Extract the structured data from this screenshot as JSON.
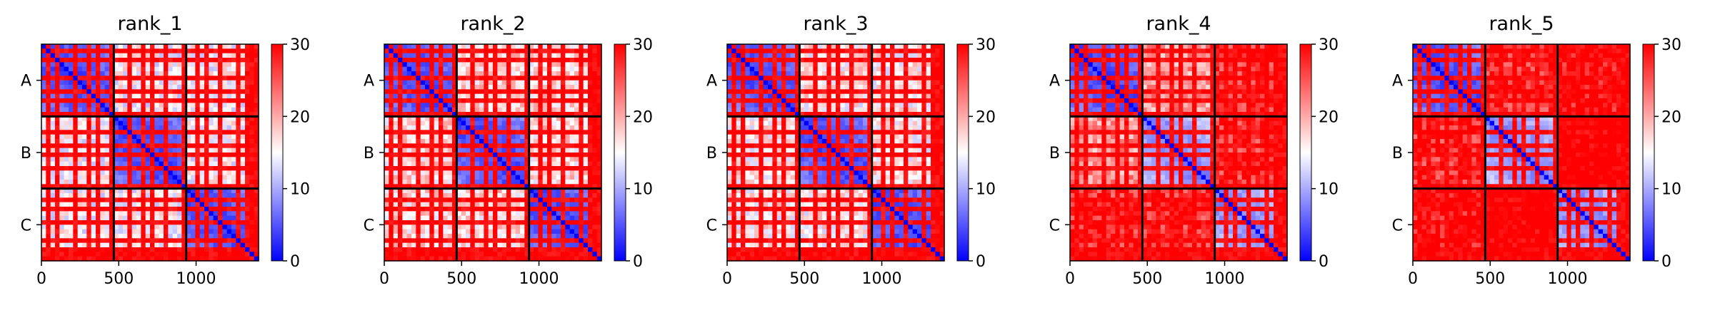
{
  "chart_data": [
    {
      "type": "heatmap",
      "title": "rank_1",
      "x_ticks": [
        0,
        500,
        1000
      ],
      "y_ticks": [
        "A",
        "B",
        "C"
      ],
      "xlim": [
        0,
        1404
      ],
      "chain_boundaries": [
        468,
        936
      ],
      "color_scale": {
        "min": 0,
        "max": 30,
        "ticks": [
          0,
          10,
          20,
          30
        ],
        "colors": [
          "#0000ff",
          "#ffffff",
          "#ff0000"
        ]
      },
      "variant": 0
    },
    {
      "type": "heatmap",
      "title": "rank_2",
      "x_ticks": [
        0,
        500,
        1000
      ],
      "y_ticks": [
        "A",
        "B",
        "C"
      ],
      "xlim": [
        0,
        1404
      ],
      "chain_boundaries": [
        468,
        936
      ],
      "color_scale": {
        "min": 0,
        "max": 30,
        "ticks": [
          0,
          10,
          20,
          30
        ],
        "colors": [
          "#0000ff",
          "#ffffff",
          "#ff0000"
        ]
      },
      "variant": 1
    },
    {
      "type": "heatmap",
      "title": "rank_3",
      "x_ticks": [
        0,
        500,
        1000
      ],
      "y_ticks": [
        "A",
        "B",
        "C"
      ],
      "xlim": [
        0,
        1404
      ],
      "chain_boundaries": [
        468,
        936
      ],
      "color_scale": {
        "min": 0,
        "max": 30,
        "ticks": [
          0,
          10,
          20,
          30
        ],
        "colors": [
          "#0000ff",
          "#ffffff",
          "#ff0000"
        ]
      },
      "variant": 2
    },
    {
      "type": "heatmap",
      "title": "rank_4",
      "x_ticks": [
        0,
        500,
        1000
      ],
      "y_ticks": [
        "A",
        "B",
        "C"
      ],
      "xlim": [
        0,
        1404
      ],
      "chain_boundaries": [
        468,
        936
      ],
      "color_scale": {
        "min": 0,
        "max": 30,
        "ticks": [
          0,
          10,
          20,
          30
        ],
        "colors": [
          "#0000ff",
          "#ffffff",
          "#ff0000"
        ]
      },
      "variant": 3
    },
    {
      "type": "heatmap",
      "title": "rank_5",
      "x_ticks": [
        0,
        500,
        1000
      ],
      "y_ticks": [
        "A",
        "B",
        "C"
      ],
      "xlim": [
        0,
        1404
      ],
      "chain_boundaries": [
        468,
        936
      ],
      "color_scale": {
        "min": 0,
        "max": 30,
        "ticks": [
          0,
          10,
          20,
          30
        ],
        "colors": [
          "#0000ff",
          "#ffffff",
          "#ff0000"
        ]
      },
      "variant": 4
    }
  ]
}
